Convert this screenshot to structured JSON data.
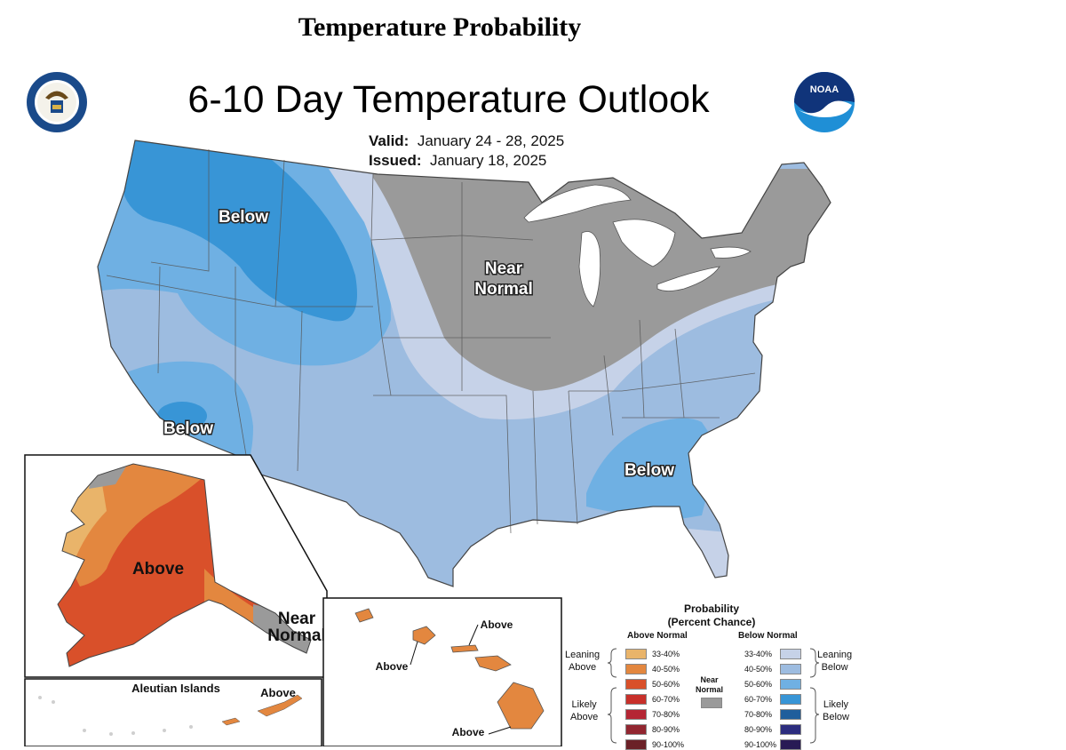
{
  "page_title": "Temperature Probability",
  "map_title": "6-10 Day Temperature Outlook",
  "valid_label": "Valid:",
  "valid_value": "January 24 - 28, 2025",
  "issued_label": "Issued:",
  "issued_value": "January 18, 2025",
  "labels": {
    "below_northwest": "Below",
    "near_normal_midwest": "Near\nNormal",
    "below_southwest": "Below",
    "below_southeast": "Below",
    "above_alaska": "Above",
    "near_normal_alaska": "Near\nNormal",
    "aleutian_title": "Aleutian Islands",
    "above_aleutian": "Above",
    "above_hawaii_1": "Above",
    "above_hawaii_2": "Above",
    "above_hawaii_3": "Above"
  },
  "legend": {
    "title": "Probability",
    "subtitle": "(Percent Chance)",
    "above_header": "Above Normal",
    "below_header": "Below Normal",
    "near_header": "Near\nNormal",
    "leaning_above": "Leaning\nAbove",
    "likely_above": "Likely\nAbove",
    "leaning_below": "Leaning\nBelow",
    "likely_below": "Likely\nBelow",
    "ranges": [
      "33-40%",
      "40-50%",
      "50-60%",
      "60-70%",
      "70-80%",
      "80-90%",
      "90-100%"
    ],
    "above_colors": [
      "#E9B46A",
      "#E3873F",
      "#D9502A",
      "#C8302A",
      "#B52634",
      "#922630",
      "#6B2127"
    ],
    "below_colors": [
      "#C6D2E8",
      "#9DBCE0",
      "#6FB0E3",
      "#3895D6",
      "#1F5E9C",
      "#2C2D7E",
      "#281A55"
    ],
    "near_color": "#9A9A9A"
  },
  "colors": {
    "below_33_40": "#C6D2E8",
    "below_40_50": "#9DBCE0",
    "below_50_60": "#6FB0E3",
    "below_60_70": "#3895D6",
    "near_normal": "#9A9A9A",
    "above_33_40": "#E9B46A",
    "above_40_50": "#E3873F",
    "above_50_60": "#D9502A"
  }
}
